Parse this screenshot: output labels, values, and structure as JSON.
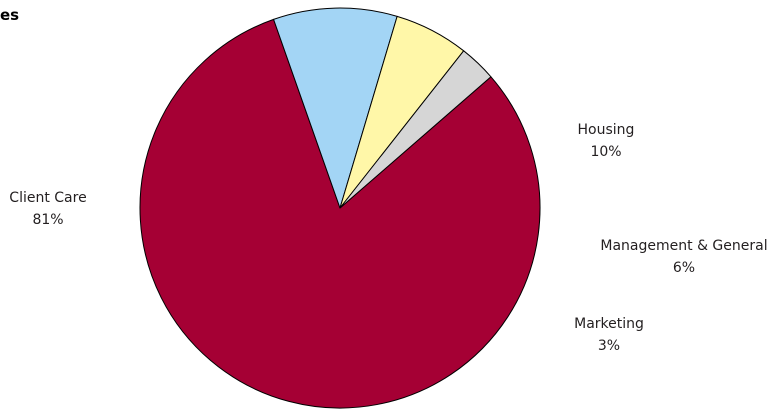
{
  "chart_data": {
    "type": "pie",
    "title": "es",
    "slices": [
      {
        "label": "Client Care",
        "value": 81,
        "display": "81%",
        "color": "#a50034"
      },
      {
        "label": "Housing",
        "value": 10,
        "display": "10%",
        "color": "#a3d5f5"
      },
      {
        "label": "Management & General",
        "value": 6,
        "display": "6%",
        "color": "#fff7a8"
      },
      {
        "label": "Marketing",
        "value": 3,
        "display": "3%",
        "color": "#d6d6d6"
      }
    ],
    "start_angle_deg": -41,
    "direction": "clockwise",
    "slice_outline_color": "#000000",
    "legend": "none"
  }
}
